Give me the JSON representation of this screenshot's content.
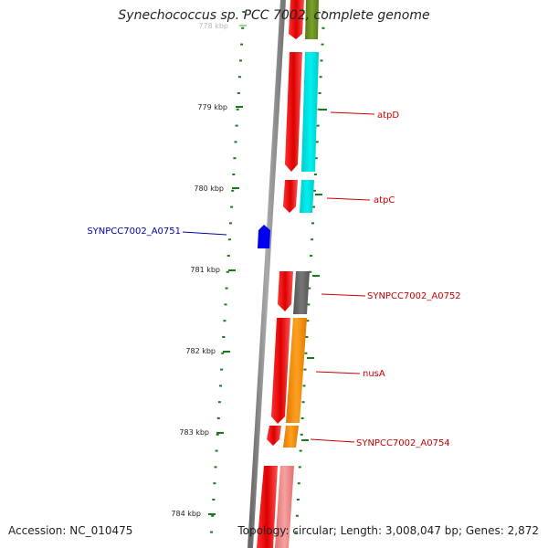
{
  "title": "Synechococcus sp. PCC 7002, complete genome",
  "accession": "Accession: NC_010475",
  "summary": "Topology: circular; Length: 3,008,047 bp; Genes: 2,872",
  "ruler": {
    "top_label": "778 kbp",
    "labels": [
      "779 kbp",
      "780 kbp",
      "781 kbp",
      "782 kbp",
      "783 kbp",
      "784 kbp"
    ]
  },
  "colors": {
    "backbone": "#888888",
    "ruler": "#1a7a1a",
    "top_label_color": "#bbbbbb",
    "forward_gene": "#0000dd",
    "reverse_gene": "#ee0000",
    "cog_cyan": "#00e5e5",
    "cog_olive": "#6b8e23",
    "cog_gray": "#666666",
    "cog_orange": "#ff8c00",
    "cog_pink": "#f08080"
  },
  "gene_labels": [
    {
      "text": "atpD",
      "color": "#cc0000"
    },
    {
      "text": "atpC",
      "color": "#cc0000"
    },
    {
      "text": "SYNPCC7002_A0751",
      "color": "#0000aa"
    },
    {
      "text": "SYNPCC7002_A0752",
      "color": "#cc0000"
    },
    {
      "text": "nusA",
      "color": "#cc0000"
    },
    {
      "text": "SYNPCC7002_A0754",
      "color": "#cc0000"
    }
  ]
}
